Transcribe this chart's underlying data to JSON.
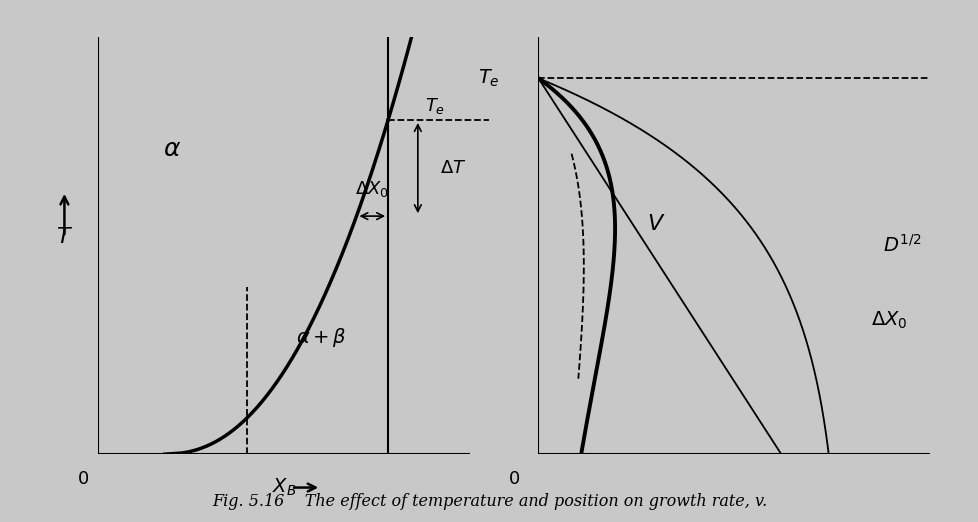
{
  "bg_color": "#c8c8c8",
  "plot_bg": "#ffffff",
  "fig_caption": "Fig. 5.16    The effect of temperature and position on growth rate, v.",
  "left_panel": {
    "alpha_label": "α",
    "alpha_beta_label": "α + β",
    "T_label": "T",
    "XB_label": "X_B",
    "DeltaT_label": "ΔT",
    "DeltaX0_label": "ΔX₀",
    "Te_label": "T_e",
    "origin_label": "0"
  },
  "right_panel": {
    "V_label": "V",
    "D12_label": "D^{1/2}",
    "DeltaX0_label": "ΔX₀",
    "Te_label": "T_e",
    "origin_label": "0"
  }
}
